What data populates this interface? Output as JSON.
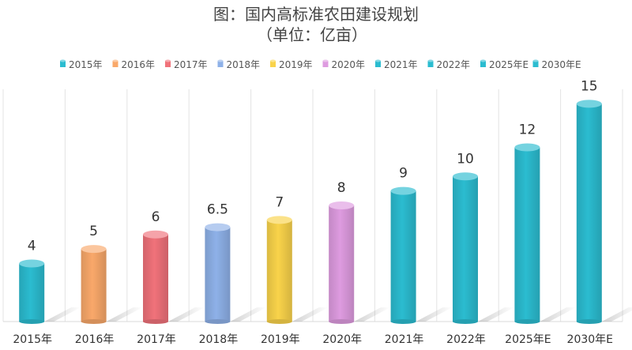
{
  "chart_data": {
    "type": "bar",
    "title": "图：国内高标准农田建设规划",
    "subtitle": "（单位：亿亩）",
    "categories": [
      "2015年",
      "2016年",
      "2017年",
      "2018年",
      "2019年",
      "2020年",
      "2021年",
      "2022年",
      "2025年E",
      "2030年E"
    ],
    "values": [
      4,
      5,
      6,
      6.5,
      7,
      8,
      9,
      10,
      12,
      15
    ],
    "value_labels": [
      "4",
      "5",
      "6",
      "6.5",
      "7",
      "8",
      "9",
      "10",
      "12",
      "15"
    ],
    "legend": [
      "2015年",
      "2016年",
      "2017年",
      "2018年",
      "2019年",
      "2020年",
      "2021年",
      "2022年",
      "2025年E",
      "2030年E"
    ],
    "colors": [
      "#2BBCD0",
      "#F9A86A",
      "#F0727A",
      "#8EB1E8",
      "#F9D34A",
      "#DE9BE0",
      "#2BBCD0",
      "#2BBCD0",
      "#2BBCD0",
      "#2BBCD0"
    ],
    "ylim": [
      0,
      16
    ],
    "grid": "vertical separators",
    "legend_position": "top-center",
    "xlabel": "",
    "ylabel": ""
  }
}
